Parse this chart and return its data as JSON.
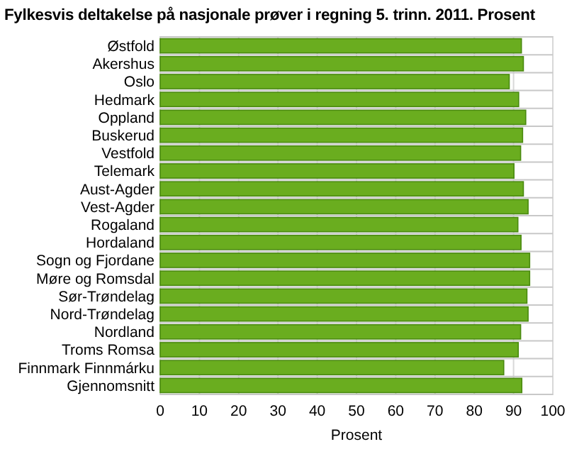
{
  "chart_data": {
    "type": "bar",
    "orientation": "horizontal",
    "title": "Fylkesvis deltakelse på nasjonale prøver i regning 5. trinn. 2011. Prosent",
    "xlabel": "Prosent",
    "categories": [
      "Østfold",
      "Akershus",
      "Oslo",
      "Hedmark",
      "Oppland",
      "Buskerud",
      "Vestfold",
      "Telemark",
      "Aust-Agder",
      "Vest-Agder",
      "Rogaland",
      "Hordaland",
      "Sogn og Fjordane",
      "Møre og Romsdal",
      "Sør-Trøndelag",
      "Nord-Trøndelag",
      "Nordland",
      "Troms Romsa",
      "Finnmark Finnmárku",
      "Gjennomsnitt"
    ],
    "values": [
      92.0,
      92.5,
      88.9,
      91.3,
      93.1,
      92.3,
      91.8,
      90.1,
      92.5,
      93.7,
      91.1,
      91.9,
      94.1,
      94.1,
      93.4,
      93.7,
      91.8,
      91.2,
      87.5,
      92.1
    ],
    "color": "#6aad1f",
    "xlim": [
      0,
      100
    ],
    "xticks": [
      0,
      10,
      20,
      30,
      40,
      50,
      60,
      70,
      80,
      90,
      100
    ],
    "grid": true
  }
}
